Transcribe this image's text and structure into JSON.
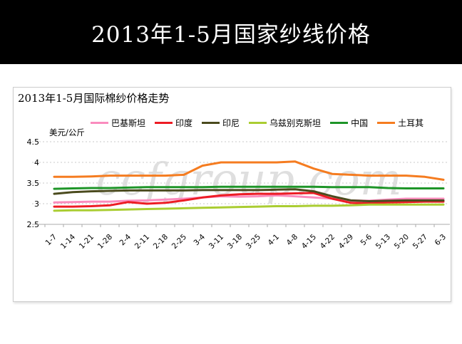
{
  "slide": {
    "title": "2013年1-5月国家纱线价格"
  },
  "chart": {
    "title": "2013年1-5月国际棉纱价格走势",
    "unit_label": "美元/公斤",
    "watermark": "ccfgroup.com"
  },
  "chart_data": {
    "type": "line",
    "title": "2013年1-5月国际棉纱价格走势",
    "xlabel": "",
    "ylabel": "美元/公斤",
    "ylim": [
      2.5,
      4.5
    ],
    "yticks": [
      "4.5",
      "4",
      "3.5",
      "3",
      "2.5"
    ],
    "grid": "horizontal-dotted",
    "legend_position": "top",
    "categories": [
      "1-7",
      "1-14",
      "1-21",
      "1-28",
      "2-4",
      "2-11",
      "2-18",
      "2-25",
      "3-4",
      "3-11",
      "3-18",
      "3-25",
      "4-1",
      "4-8",
      "4-15",
      "4-22",
      "4-29",
      "5-6",
      "5-13",
      "5-20",
      "5-27",
      "6-3"
    ],
    "series": [
      {
        "name": "巴基斯坦",
        "color": "#FA8CBE",
        "values": [
          3.03,
          3.04,
          3.05,
          3.05,
          3.07,
          3.08,
          3.1,
          3.12,
          3.15,
          3.18,
          3.17,
          3.18,
          3.2,
          3.18,
          3.15,
          3.12,
          3.08,
          3.07,
          3.1,
          3.12,
          3.12,
          3.12
        ]
      },
      {
        "name": "印度",
        "color": "#ED1C24",
        "values": [
          2.93,
          2.93,
          2.94,
          2.96,
          3.04,
          3.0,
          3.02,
          3.08,
          3.15,
          3.2,
          3.23,
          3.24,
          3.24,
          3.25,
          3.26,
          3.12,
          3.02,
          3.01,
          3.03,
          3.04,
          3.05,
          3.05
        ]
      },
      {
        "name": "印尼",
        "color": "#4B4B1E",
        "values": [
          3.24,
          3.28,
          3.3,
          3.31,
          3.32,
          3.32,
          3.32,
          3.32,
          3.33,
          3.33,
          3.33,
          3.33,
          3.34,
          3.35,
          3.3,
          3.18,
          3.08,
          3.06,
          3.07,
          3.08,
          3.08,
          3.08
        ]
      },
      {
        "name": "乌兹别克斯坦",
        "color": "#AACD32",
        "values": [
          2.83,
          2.84,
          2.84,
          2.85,
          2.86,
          2.87,
          2.88,
          2.89,
          2.9,
          2.91,
          2.92,
          2.93,
          2.94,
          2.94,
          2.95,
          2.95,
          2.96,
          2.98,
          2.98,
          2.98,
          2.98,
          2.98
        ]
      },
      {
        "name": "中国",
        "color": "#1E9528",
        "values": [
          3.36,
          3.37,
          3.38,
          3.38,
          3.39,
          3.4,
          3.4,
          3.4,
          3.4,
          3.41,
          3.41,
          3.41,
          3.41,
          3.41,
          3.41,
          3.4,
          3.4,
          3.4,
          3.38,
          3.37,
          3.37,
          3.37
        ]
      },
      {
        "name": "土耳其",
        "color": "#F57C20",
        "values": [
          3.65,
          3.65,
          3.66,
          3.68,
          3.68,
          3.68,
          3.68,
          3.7,
          3.92,
          4.0,
          4.0,
          4.0,
          4.0,
          4.02,
          3.85,
          3.72,
          3.7,
          3.68,
          3.68,
          3.68,
          3.65,
          3.58
        ]
      }
    ]
  }
}
